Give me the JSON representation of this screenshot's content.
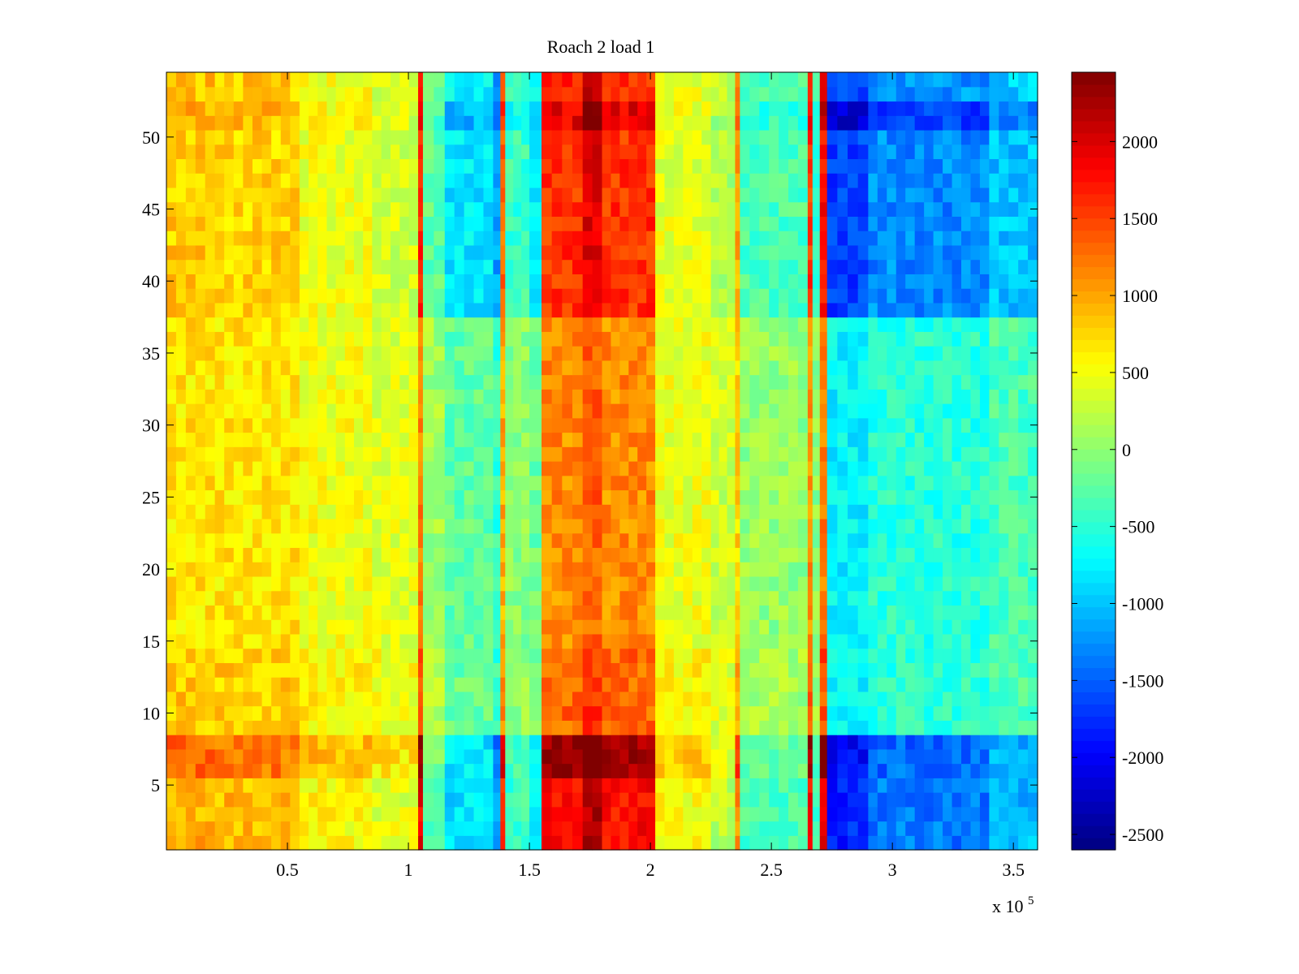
{
  "chart_data": {
    "type": "heatmap",
    "title": "Roach 2 load 1",
    "xlabel": "",
    "ylabel": "",
    "x_exponent_label": "x 10",
    "x_exponent_power": "5",
    "xlim": [
      0,
      360000
    ],
    "ylim": [
      0.5,
      54.5
    ],
    "x_ticks": [
      50000,
      100000,
      150000,
      200000,
      250000,
      300000,
      350000
    ],
    "x_tick_labels": [
      "0.5",
      "1",
      "1.5",
      "2",
      "2.5",
      "3",
      "3.5"
    ],
    "y_ticks": [
      5,
      10,
      15,
      20,
      25,
      30,
      35,
      40,
      45,
      50
    ],
    "y_tick_labels": [
      "5",
      "10",
      "15",
      "20",
      "25",
      "30",
      "35",
      "40",
      "45",
      "50"
    ],
    "colorbar": {
      "colormap": "jet",
      "clim": [
        -2600,
        2450
      ],
      "ticks": [
        2000,
        1500,
        1000,
        500,
        0,
        -500,
        -1000,
        -1500,
        -2000,
        -2500
      ],
      "tick_labels": [
        "2000",
        "1500",
        "1000",
        "500",
        "0",
        "-500",
        "-1000",
        "-1500",
        "-2000",
        "-2500"
      ]
    },
    "rows": 54,
    "x_segments": [
      {
        "x_start": 0,
        "x_end": 20000,
        "base": 800
      },
      {
        "x_start": 20000,
        "x_end": 55000,
        "base": 750
      },
      {
        "x_start": 55000,
        "x_end": 85000,
        "base": 450
      },
      {
        "x_start": 85000,
        "x_end": 104000,
        "base": 300
      },
      {
        "x_start": 104000,
        "x_end": 106000,
        "base": 1700
      },
      {
        "x_start": 106000,
        "x_end": 115000,
        "base": -300
      },
      {
        "x_start": 115000,
        "x_end": 135000,
        "base": -900
      },
      {
        "x_start": 135000,
        "x_end": 138000,
        "base": -1300
      },
      {
        "x_start": 138000,
        "x_end": 140000,
        "base": 1300
      },
      {
        "x_start": 140000,
        "x_end": 150000,
        "base": -500
      },
      {
        "x_start": 150000,
        "x_end": 155000,
        "base": -800
      },
      {
        "x_start": 155000,
        "x_end": 172000,
        "base": 1600
      },
      {
        "x_start": 172000,
        "x_end": 180000,
        "base": 2000
      },
      {
        "x_start": 180000,
        "x_end": 202000,
        "base": 1600
      },
      {
        "x_start": 202000,
        "x_end": 225000,
        "base": 400
      },
      {
        "x_start": 225000,
        "x_end": 235000,
        "base": 100
      },
      {
        "x_start": 235000,
        "x_end": 237000,
        "base": 1000
      },
      {
        "x_start": 237000,
        "x_end": 265000,
        "base": -400
      },
      {
        "x_start": 265000,
        "x_end": 267000,
        "base": 1600
      },
      {
        "x_start": 267000,
        "x_end": 270000,
        "base": -500
      },
      {
        "x_start": 270000,
        "x_end": 273000,
        "base": 1800
      },
      {
        "x_start": 273000,
        "x_end": 290000,
        "base": -1800
      },
      {
        "x_start": 290000,
        "x_end": 340000,
        "base": -1400
      },
      {
        "x_start": 340000,
        "x_end": 360000,
        "base": -1100
      }
    ],
    "row_bands": [
      {
        "y_start": 1,
        "y_end": 5,
        "gain": 1.05,
        "offset": 100
      },
      {
        "y_start": 6,
        "y_end": 8,
        "gain": 1.25,
        "offset": 300
      },
      {
        "y_start": 9,
        "y_end": 14,
        "gain": 0.6,
        "offset": 350
      },
      {
        "y_start": 15,
        "y_end": 37,
        "gain": 0.55,
        "offset": 250
      },
      {
        "y_start": 38,
        "y_end": 50,
        "gain": 0.95,
        "offset": 50
      },
      {
        "y_start": 51,
        "y_end": 52,
        "gain": 1.2,
        "offset": 0
      },
      {
        "y_start": 53,
        "y_end": 54,
        "gain": 0.95,
        "offset": 100
      }
    ]
  }
}
